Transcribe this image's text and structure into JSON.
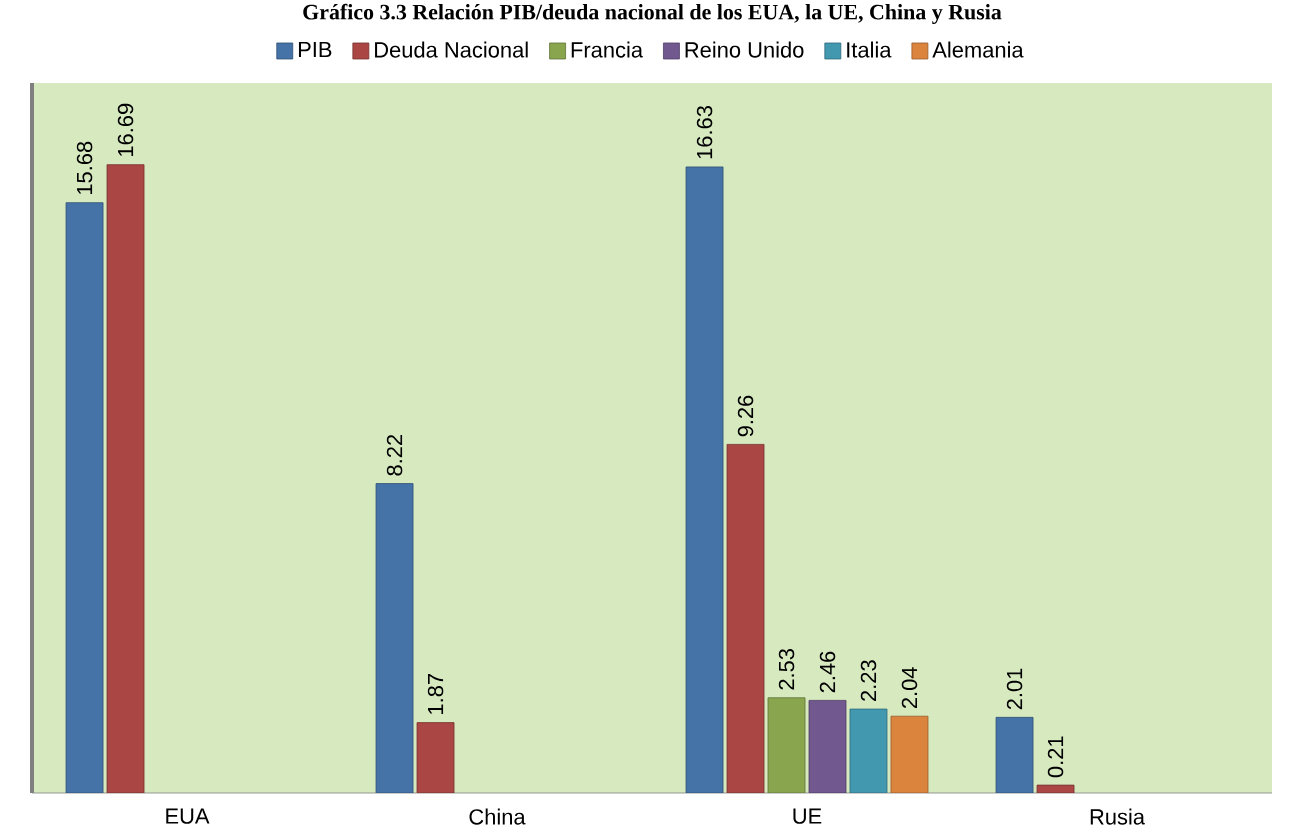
{
  "chart_data": {
    "type": "bar",
    "title": "Gráfico 3.3 Relación PIB/deuda nacional de los EUA, la UE, China y Rusia",
    "categories": [
      "EUA",
      "China",
      "UE",
      "Rusia"
    ],
    "series": [
      {
        "name": "PIB",
        "color": "#4572a7",
        "values": [
          15.68,
          8.22,
          16.63,
          2.01
        ]
      },
      {
        "name": "Deuda Nacional",
        "color": "#aa4643",
        "values": [
          16.69,
          1.87,
          9.26,
          0.21
        ]
      },
      {
        "name": "Francia",
        "color": "#89a54e",
        "values": [
          null,
          null,
          2.53,
          null
        ]
      },
      {
        "name": "Reino Unido",
        "color": "#71588f",
        "values": [
          null,
          null,
          2.46,
          null
        ]
      },
      {
        "name": "Italia",
        "color": "#4198af",
        "values": [
          null,
          null,
          2.23,
          null
        ]
      },
      {
        "name": "Alemania",
        "color": "#db843d",
        "values": [
          null,
          null,
          2.04,
          null
        ]
      }
    ],
    "data_labels": true,
    "legend": "top"
  }
}
